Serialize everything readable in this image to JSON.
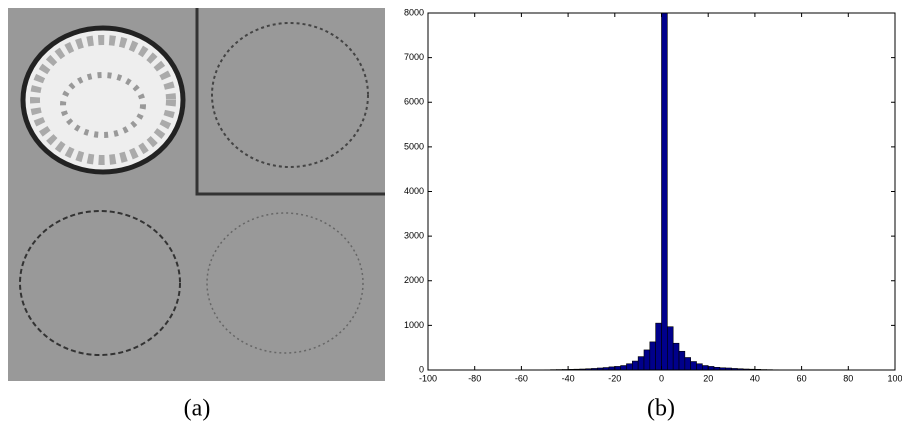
{
  "chart_data": {
    "type": "histogram",
    "bins": [
      -50,
      -47.5,
      -45,
      -42.5,
      -40,
      -37.5,
      -35,
      -32.5,
      -30,
      -27.5,
      -25,
      -22.5,
      -20,
      -17.5,
      -15,
      -12.5,
      -10,
      -7.5,
      -5,
      -2.5,
      0,
      2.5,
      5,
      7.5,
      10,
      12.5,
      15,
      17.5,
      20,
      22.5,
      25,
      27.5,
      30,
      32.5,
      35,
      37.5,
      40,
      42.5,
      45,
      47.5,
      50
    ],
    "counts": [
      5,
      8,
      10,
      12,
      15,
      18,
      22,
      28,
      35,
      45,
      55,
      70,
      80,
      100,
      140,
      200,
      300,
      450,
      630,
      1050,
      8000,
      970,
      600,
      420,
      280,
      190,
      140,
      100,
      80,
      60,
      50,
      45,
      35,
      28,
      22,
      18,
      15,
      10,
      8,
      5
    ],
    "color": "#00008b",
    "xlim": [
      -100,
      100
    ],
    "xticks": [
      -100,
      -80,
      -60,
      -40,
      -20,
      0,
      20,
      40,
      60,
      80,
      100
    ],
    "ylim": [
      0,
      8000
    ],
    "yticks": [
      0,
      1000,
      2000,
      3000,
      4000,
      5000,
      6000,
      7000,
      8000
    ],
    "grid": false
  },
  "captions": [
    "(a)",
    "(b)"
  ]
}
